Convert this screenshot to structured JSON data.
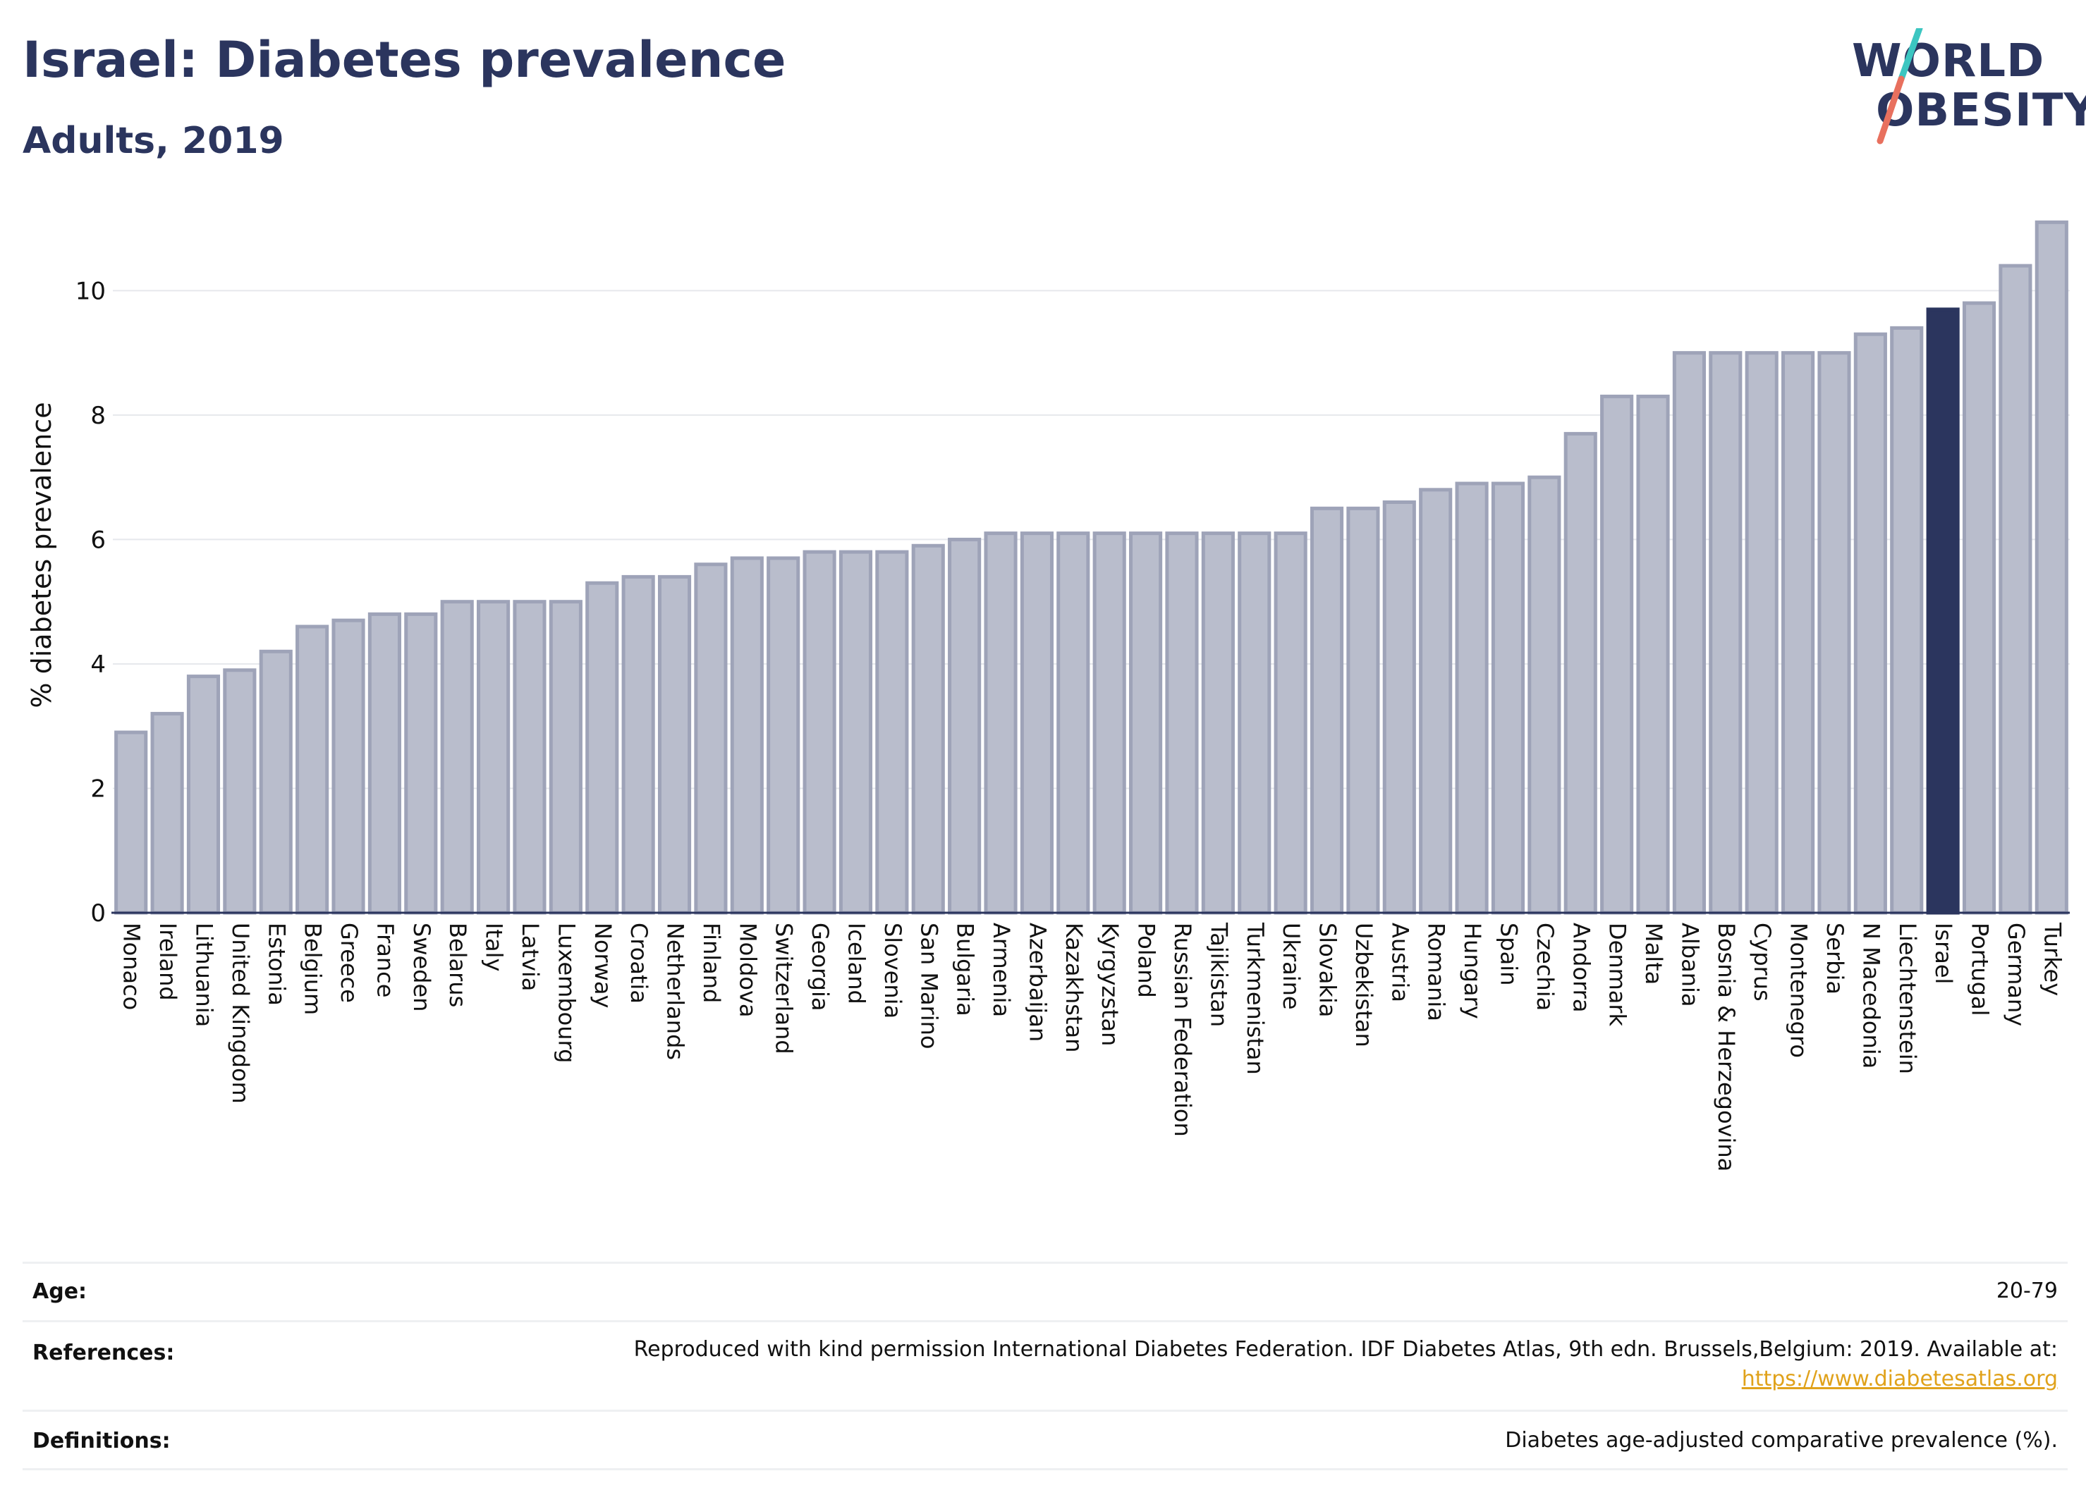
{
  "header": {
    "title": "Israel: Diabetes prevalence",
    "subtitle": "Adults, 2019"
  },
  "logo": {
    "line1": "WORLD",
    "line2": "OBESITY",
    "accent_colors": [
      "#3cc6c1",
      "#e8705e"
    ]
  },
  "colors": {
    "bar": "#b9bdcc",
    "bar_border": "#9ea3b8",
    "highlight": "#2b355e",
    "grid": "#e6e8ec"
  },
  "chart_data": {
    "type": "bar",
    "ylabel": "% diabetes prevalence",
    "ylim": [
      0,
      11.5
    ],
    "yticks": [
      0,
      2,
      4,
      6,
      8,
      10
    ],
    "highlight": "Israel",
    "categories": [
      "Monaco",
      "Ireland",
      "Lithuania",
      "United Kingdom",
      "Estonia",
      "Belgium",
      "Greece",
      "France",
      "Sweden",
      "Belarus",
      "Italy",
      "Latvia",
      "Luxembourg",
      "Norway",
      "Croatia",
      "Netherlands",
      "Finland",
      "Moldova",
      "Switzerland",
      "Georgia",
      "Iceland",
      "Slovenia",
      "San Marino",
      "Bulgaria",
      "Armenia",
      "Azerbaijan",
      "Kazakhstan",
      "Kyrgyzstan",
      "Poland",
      "Russian Federation",
      "Tajikistan",
      "Turkmenistan",
      "Ukraine",
      "Slovakia",
      "Uzbekistan",
      "Austria",
      "Romania",
      "Hungary",
      "Spain",
      "Czechia",
      "Andorra",
      "Denmark",
      "Malta",
      "Albania",
      "Bosnia & Herzegovina",
      "Cyprus",
      "Montenegro",
      "Serbia",
      "N Macedonia",
      "Liechtenstein",
      "Israel",
      "Portugal",
      "Germany",
      "Turkey"
    ],
    "values": [
      2.9,
      3.2,
      3.8,
      3.9,
      4.2,
      4.6,
      4.7,
      4.8,
      4.8,
      5.0,
      5.0,
      5.0,
      5.0,
      5.3,
      5.4,
      5.4,
      5.6,
      5.7,
      5.7,
      5.8,
      5.8,
      5.8,
      5.9,
      6.0,
      6.1,
      6.1,
      6.1,
      6.1,
      6.1,
      6.1,
      6.1,
      6.1,
      6.1,
      6.5,
      6.5,
      6.6,
      6.8,
      6.9,
      6.9,
      7.0,
      7.7,
      8.3,
      8.3,
      9.0,
      9.0,
      9.0,
      9.0,
      9.0,
      9.3,
      9.4,
      9.7,
      9.8,
      10.4,
      11.1
    ]
  },
  "info": {
    "age_label": "Age:",
    "age_value": "20-79",
    "references_label": "References:",
    "references_text": "Reproduced with kind permission International Diabetes Federation. IDF Diabetes Atlas, 9th edn. Brussels,Belgium: 2019. Available at:",
    "references_link": "https://www.diabetesatlas.org",
    "definitions_label": "Definitions:",
    "definitions_text": "Diabetes age-adjusted comparative prevalence (%)."
  }
}
